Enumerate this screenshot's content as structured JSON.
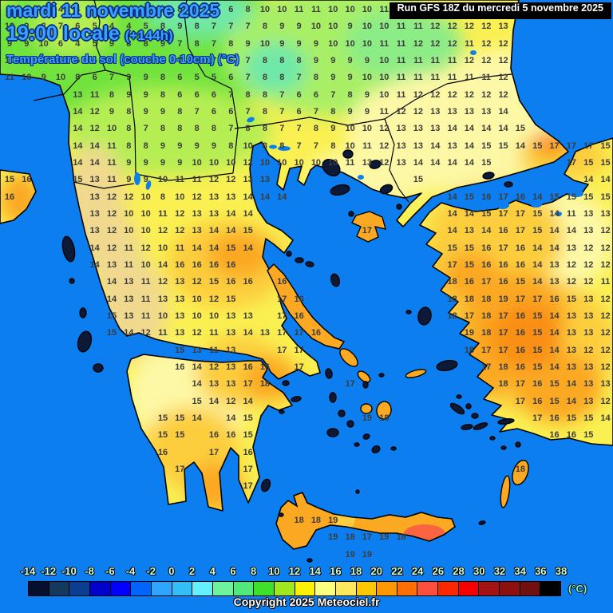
{
  "header": {
    "date_line": "mardi 11 novembre 2025",
    "time_line": "19:00 locale",
    "forecast_offset": "(+144h)",
    "subtitle": "Température du sol (couche 0-10cm) (°C)",
    "run_info": "Run GFS 18Z du mercredi 5 novembre 2025"
  },
  "footer": {
    "copyright": "Copyright 2025 Meteociel.fr",
    "unit_label": "(°C)"
  },
  "colors": {
    "sea": "#0d7eef",
    "title_blue": "#38a2ff",
    "title_outline": "#0a2d85",
    "number_gray": "#3c3c3c",
    "run_bg": "#000000",
    "run_text": "#ffffff",
    "dark_island": "#0c1a38",
    "land_yellow": "#faf052",
    "land_orange": "#fba823"
  },
  "legend": {
    "labels": [
      "-14",
      "-12",
      "-10",
      "-8",
      "-6",
      "-4",
      "-2",
      "0",
      "2",
      "4",
      "6",
      "8",
      "10",
      "12",
      "14",
      "16",
      "18",
      "20",
      "22",
      "24",
      "26",
      "28",
      "30",
      "32",
      "34",
      "36",
      "38"
    ],
    "swatches": [
      "#050f2e",
      "#14395c",
      "#0b3d91",
      "#0000cd",
      "#0000ff",
      "#0064ff",
      "#30a5ff",
      "#33bff5",
      "#63f0ff",
      "#6ef29e",
      "#4fe97c",
      "#3fe02a",
      "#a0e81e",
      "#fdf000",
      "#feff7e",
      "#fee95a",
      "#fec800",
      "#fe9800",
      "#fe6e00",
      "#fe4f3e",
      "#fe2800",
      "#f80000",
      "#a31313",
      "#8d1010",
      "#701010",
      "#000000"
    ]
  },
  "temperature_grid": {
    "type": "heatmap",
    "description": "Soil temperature (0-10cm) values in °C on the GFS grid; '.' = sea / no value",
    "rows": [
      "4 6 4 4 4 5 8 7 8 10 8 8 7 6 8 10 10 11 11 10 10 10 11 12 . . . . . . . . . . . .",
      "10 9 8 7 6 5 4 4 5 8 9 8 7 7 7 8 9 9 10 10 9 10 10 11 11 12 12 12 12 13 . . . . . .",
      "9 9 10 6 4 5 9 8 8 9 7 8 7 8 9 10 9 9 9 10 10 10 11 11 12 12 12 11 12 12 . . . . . .",
      "10 9 9 10 6 5 8 8 7 9 7 7 7 6 7 8 8 8 9 9 9 9 10 11 11 11 11 12 12 12 . . . . . .",
      "11 10 9 10 8 6 7 9 9 8 6 5 5 6 7 8 8 7 8 9 9 10 10 11 11 11 11 11 11 12 . . . . . .",
      ". . . . 13 11 8 9 9 8 6 6 6 7 8 8 7 6 6 7 8 9 10 11 12 12 12 12 12 12 . . . . . .",
      ". . . . 14 12 9 8 9 9 8 7 6 6 7 8 7 6 7 8 9 9 11 12 12 13 13 13 13 14 . . . . . .",
      ". . . . 14 12 10 8 7 8 8 8 8 7 8 8 7 7 8 9 10 10 12 13 13 13 14 14 14 14 15 . . . . .",
      ". . . . 14 14 11 8 8 9 9 9 9 8 10 8 8 7 7 8 10 11 12 13 13 14 13 14 15 15 14 15 17 17 17 15",
      ". . . . 14 14 11 9 9 9 9 10 10 10 12 10 10 10 10 10 11 13 12 13 14 14 14 14 15 . . . . 17 15 15",
      "15 16 . . 15 13 11 9 9 10 11 11 12 12 13 13 . . . . . . . . 15 . . . . . . . . . 14 14",
      "16 . . . . 13 12 12 10 8 10 12 13 13 14 14 14 . . . . . . . . . 14 15 16 17 16 14 15 15 15 15",
      ". . . . . 13 12 10 10 11 12 13 13 14 14 . . . . . . . . . . . 14 14 15 17 17 15 14 11 13 13",
      ". . . . . 13 12 10 10 12 12 13 14 14 15 . . . . . . 17 . . . . 14 13 14 16 17 15 14 14 13 12",
      ". . . . . 14 12 11 12 10 11 14 14 15 14 . . . . . . . . . . . 15 15 16 17 16 14 14 13 12 12",
      ". . . . . 14 13 11 10 14 16 16 16 16 . . . . . . . . . . . . 17 15 16 16 16 14 13 12 12 12",
      ". . . . . . 14 13 11 12 13 12 15 16 16 . 16 . . . . . . . . . 18 16 17 16 15 14 13 12 12 11",
      ". . . . . . 14 13 11 13 13 10 12 15 . . 17 16 . . . . . . . . 18 18 18 19 17 17 16 15 13 12",
      ". . . . . . 15 13 11 10 13 10 10 13 13 . 17 16 . . . . . . . . 18 17 18 17 16 15 14 13 13 12",
      ". . . . . . 15 14 12 11 13 12 11 13 14 13 17 17 16 . . . . . . . . 19 18 17 16 15 14 13 13 12",
      ". . . . . . . . . . 15 13 11 13 . . 17 17 . . . . . . . . . 18 17 17 16 15 14 13 12 12",
      ". . . . . . . . . . 16 14 12 13 16 16 . 17 . . . . . . . . . . 17 18 16 15 14 13 13 12",
      ". . . . . . . . . . . 14 13 13 17 18 . . . . 17 . . . . . . . . 18 17 16 15 14 13 13",
      ". . . . . . . . . . . 15 14 12 14 . . . . . . . . . . . . . . . 17 16 15 14 13 12",
      ". . . . . . . . . 15 15 14 . 14 15 . . . . . . 19 18 . . . . . . . . 17 16 15 15 14",
      ". . . . . . . . . 15 15 . 16 16 15 . . . . . . . . . . . . . . . . . 16 16 15 .",
      ". . . . . . . . . 16 . . 17 . 16 . . . . . . . . . . . . . . . . . . . . .",
      ". . . . . . . . . . 17 . . . 17 . . . . . . . . . . . . . . . 18 . . . . .",
      ". . . . . . . . . . . . . . 17 . . . . . . . . . . . . . . . . . . . . .",
      ". . . . . . . . . . . . . . . . . . . . . . . . . . . . . . . . . . . .",
      ". . . . . . . . . . . . . . . . . 18 18 19 . . . . . . . . . . . . . . . .",
      ". . . . . . . . . . . . . . . . . . . 19 18 17 19 18 . . . . . . . . . . . .",
      ". . . . . . . . . . . . . . . . . . . . 19 19 . . . . . . . . . . . . . ."
    ]
  }
}
